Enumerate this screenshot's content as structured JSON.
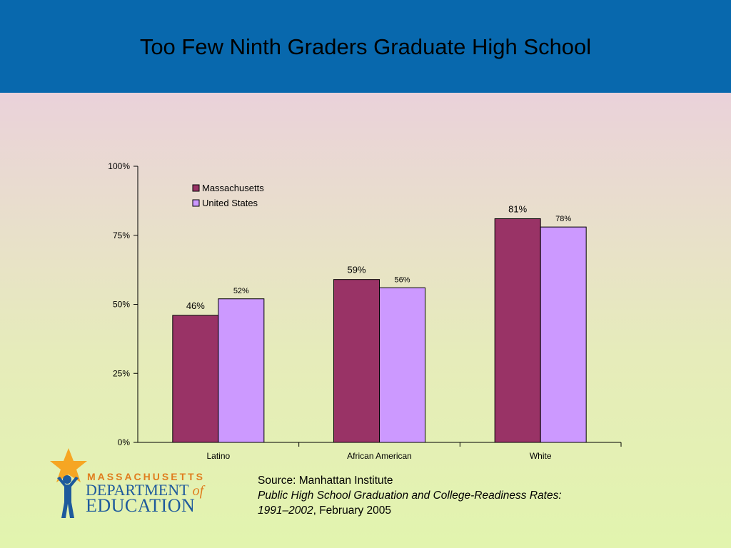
{
  "slide": {
    "title": "Too Few Ninth Graders Graduate High School"
  },
  "colors": {
    "header_band": "#0868ad",
    "massachusetts": "#993366",
    "united_states": "#cc99ff",
    "logo_orange": "#e07d1e",
    "logo_blue": "#1e5a9c"
  },
  "chart_data": {
    "type": "bar",
    "title": "",
    "xlabel": "",
    "ylabel": "",
    "categories": [
      "Latino",
      "African American",
      "White"
    ],
    "series": [
      {
        "name": "Massachusetts",
        "values": [
          46,
          59,
          81
        ],
        "labels": [
          "46%",
          "59%",
          "81%"
        ],
        "color": "#993366"
      },
      {
        "name": "United States",
        "values": [
          52,
          56,
          78
        ],
        "labels": [
          "52%",
          "56%",
          "78%"
        ],
        "color": "#cc99ff"
      }
    ],
    "ylim": [
      0,
      100
    ],
    "yticks": [
      0,
      25,
      50,
      75,
      100
    ],
    "ytick_labels": [
      "0%",
      "25%",
      "50%",
      "75%",
      "100%"
    ],
    "grid": false,
    "legend": "top-left"
  },
  "logo": {
    "line1": "MASSACHUSETTS",
    "line2": "DEPARTMENT",
    "line2_of": "of",
    "line3": "EDUCATION",
    "icon": "star-person-icon"
  },
  "source": {
    "line1": "Source: Manhattan Institute",
    "line2": "Public High School Graduation and College-Readiness Rates:",
    "line3_italic": "1991–2002",
    "line3_rest": ", February 2005"
  }
}
